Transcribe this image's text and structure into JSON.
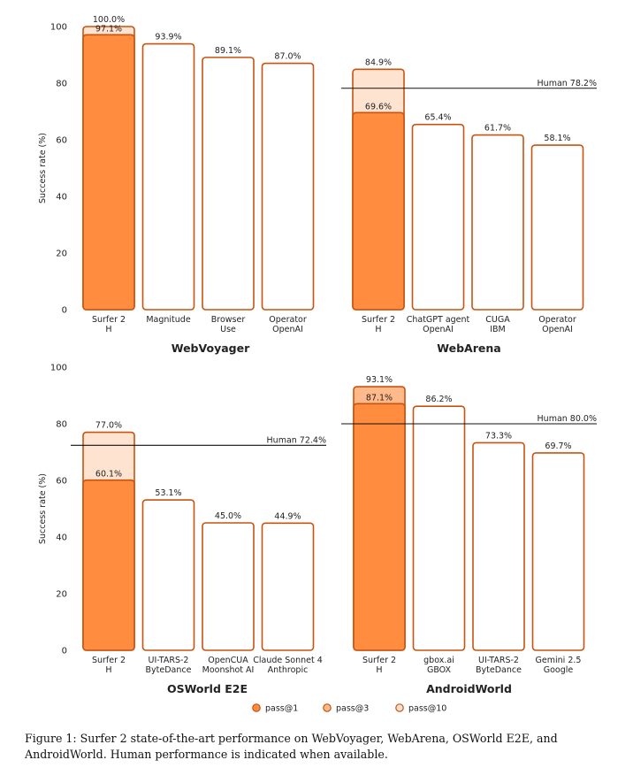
{
  "chart_data": [
    {
      "type": "bar",
      "title": "WebVoyager",
      "ylabel": "Success rate (%)",
      "ylim": [
        0,
        100
      ],
      "yticks": [
        0,
        20,
        40,
        60,
        80,
        100
      ],
      "categories": [
        [
          "Surfer 2",
          "H"
        ],
        [
          "Magnitude"
        ],
        [
          "Browser",
          "Use"
        ],
        [
          "Operator",
          "OpenAI"
        ]
      ],
      "series": [
        {
          "name": "pass@1",
          "values": [
            97.1,
            93.9,
            89.1,
            87.0
          ]
        },
        {
          "name": "pass@3",
          "values": [
            null,
            null,
            null,
            null
          ]
        },
        {
          "name": "pass@10",
          "values": [
            100.0,
            null,
            null,
            null
          ]
        }
      ],
      "labels": [
        [
          "97.1%",
          "100.0%"
        ],
        [
          "93.9%"
        ],
        [
          "89.1%"
        ],
        [
          "87.0%"
        ]
      ],
      "human": null
    },
    {
      "type": "bar",
      "title": "WebArena",
      "ylabel": "",
      "ylim": [
        0,
        100
      ],
      "yticks": [],
      "categories": [
        [
          "Surfer 2",
          "H"
        ],
        [
          "ChatGPT agent",
          "OpenAI"
        ],
        [
          "CUGA",
          "IBM"
        ],
        [
          "Operator",
          "OpenAI"
        ]
      ],
      "series": [
        {
          "name": "pass@1",
          "values": [
            69.6,
            65.4,
            61.7,
            58.1
          ]
        },
        {
          "name": "pass@3",
          "values": [
            null,
            null,
            null,
            null
          ]
        },
        {
          "name": "pass@10",
          "values": [
            84.9,
            null,
            null,
            null
          ]
        }
      ],
      "labels": [
        [
          "69.6%",
          "84.9%"
        ],
        [
          "65.4%"
        ],
        [
          "61.7%"
        ],
        [
          "58.1%"
        ]
      ],
      "human": {
        "value": 78.2,
        "label": "Human 78.2%"
      }
    },
    {
      "type": "bar",
      "title": "OSWorld E2E",
      "ylabel": "Success rate (%)",
      "ylim": [
        0,
        100
      ],
      "yticks": [
        0,
        20,
        40,
        60,
        80,
        100
      ],
      "categories": [
        [
          "Surfer 2",
          "H"
        ],
        [
          "UI-TARS-2",
          "ByteDance"
        ],
        [
          "OpenCUA",
          "Moonshot AI"
        ],
        [
          "Claude Sonnet 4",
          "Anthropic"
        ]
      ],
      "series": [
        {
          "name": "pass@1",
          "values": [
            60.1,
            53.1,
            45.0,
            44.9
          ]
        },
        {
          "name": "pass@3",
          "values": [
            null,
            null,
            null,
            null
          ]
        },
        {
          "name": "pass@10",
          "values": [
            77.0,
            null,
            null,
            null
          ]
        }
      ],
      "labels": [
        [
          "60.1%",
          "77.0%"
        ],
        [
          "53.1%"
        ],
        [
          "45.0%"
        ],
        [
          "44.9%"
        ]
      ],
      "human": {
        "value": 72.4,
        "label": "Human 72.4%"
      }
    },
    {
      "type": "bar",
      "title": "AndroidWorld",
      "ylabel": "",
      "ylim": [
        0,
        100
      ],
      "yticks": [],
      "categories": [
        [
          "Surfer 2",
          "H"
        ],
        [
          "gbox.ai",
          "GBOX"
        ],
        [
          "UI-TARS-2",
          "ByteDance"
        ],
        [
          "Gemini 2.5",
          "Google"
        ]
      ],
      "series": [
        {
          "name": "pass@1",
          "values": [
            87.1,
            86.2,
            73.3,
            69.7
          ]
        },
        {
          "name": "pass@3",
          "values": [
            93.1,
            null,
            null,
            null
          ]
        },
        {
          "name": "pass@10",
          "values": [
            null,
            null,
            null,
            null
          ]
        }
      ],
      "labels": [
        [
          "87.1%",
          "93.1%"
        ],
        [
          "86.2%"
        ],
        [
          "73.3%"
        ],
        [
          "69.7%"
        ]
      ],
      "human": {
        "value": 80.0,
        "label": "Human 80.0%"
      }
    }
  ],
  "legend": [
    {
      "name": "pass@1",
      "fill": "#FF8C3F"
    },
    {
      "name": "pass@3",
      "fill": "#FFB98B"
    },
    {
      "name": "pass@10",
      "fill": "#FFE3D1"
    }
  ],
  "colors": {
    "edge": "#C8530F",
    "pass1": "#FF8C3F",
    "pass3": "#FFB98B",
    "pass10": "#FFE3D1",
    "line": "#111111"
  },
  "caption": "Figure 1: Surfer 2 state-of-the-art performance on WebVoyager, WebArena, OSWorld E2E, and AndroidWorld. Human performance is indicated when available."
}
